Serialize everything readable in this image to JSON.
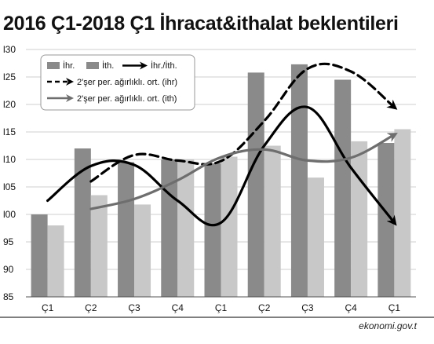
{
  "title": "2016 Ç1-2018 Ç1 İhracat&ithalat beklentileri",
  "source": "ekonomi.gov.t",
  "chart_data": {
    "type": "bar",
    "categories": [
      "Ç1",
      "Ç2",
      "Ç3",
      "Ç4",
      "Ç1",
      "Ç2",
      "Ç3",
      "Ç4",
      "Ç1"
    ],
    "ylim": [
      85,
      130
    ],
    "yticks": [
      "85",
      "90",
      "95",
      "100",
      "105",
      "110",
      "115",
      "120",
      "125",
      "130"
    ],
    "ytick_labels": [
      "85",
      "90",
      "95",
      "l00",
      "l05",
      "l10",
      "l15",
      "l20",
      "l25",
      "l30"
    ],
    "grid": true,
    "legend_position": "top-left",
    "series": [
      {
        "name": "İhr.",
        "type": "bar",
        "color": "#8a8a8a",
        "values": [
          100.0,
          112.0,
          109.5,
          110.0,
          109.3,
          125.8,
          127.3,
          124.5,
          113.0
        ]
      },
      {
        "name": "İth.",
        "type": "bar",
        "color": "#c8c8c8",
        "values": [
          98.0,
          103.5,
          101.8,
          110.0,
          110.5,
          112.5,
          106.7,
          113.3,
          115.5
        ]
      },
      {
        "name": "İhr./İth.",
        "type": "line",
        "style": "solid",
        "color": "#000000",
        "values": [
          102.5,
          108.8,
          109.0,
          102.5,
          98.5,
          112.5,
          119.5,
          108.5,
          98.5
        ]
      },
      {
        "name": "2'şer per. ağırlıklı. ort. (ihr)",
        "type": "line",
        "style": "dashed",
        "color": "#000000",
        "values": [
          null,
          106.0,
          110.8,
          109.8,
          109.7,
          117.0,
          126.5,
          126.0,
          119.5
        ]
      },
      {
        "name": "2'şer per. ağırlıklı. ort. (ith)",
        "type": "line",
        "style": "solid",
        "color": "#6e6e6e",
        "values": [
          null,
          101.0,
          102.8,
          106.2,
          110.4,
          111.8,
          109.8,
          110.3,
          114.5
        ]
      }
    ]
  }
}
